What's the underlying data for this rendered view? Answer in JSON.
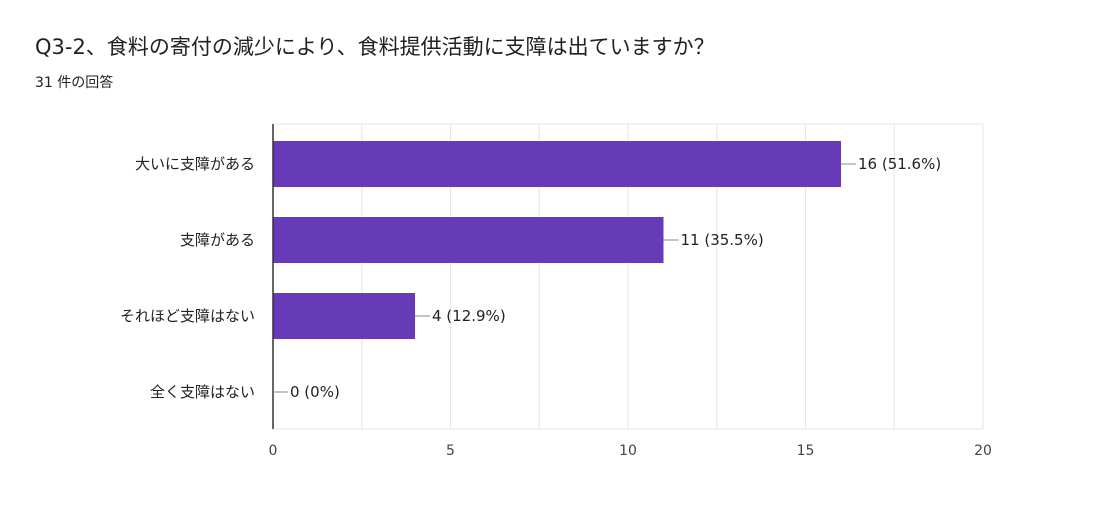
{
  "header": {
    "question": "Q3-2、食料の寄付の減少により、食料提供活動に支障は出ていますか？",
    "response_count": "31 件の回答"
  },
  "chart_data": {
    "type": "bar",
    "orientation": "horizontal",
    "title": "Q3-2、食料の寄付の減少により、食料提供活動に支障は出ていますか？",
    "categories": [
      "大いに支障がある",
      "支障がある",
      "それほど支障はない",
      "全く支障はない"
    ],
    "values": [
      16,
      11,
      4,
      0
    ],
    "data_labels": [
      "16 (51.6%)",
      "11 (35.5%)",
      "4 (12.9%)",
      "0 (0%)"
    ],
    "xlim": [
      0,
      20
    ],
    "x_ticks": [
      0,
      5,
      10,
      15,
      20
    ],
    "grid": true,
    "colors": {
      "bar": "#673ab7",
      "grid": "#e6e6e6",
      "axis": "#333333"
    }
  }
}
